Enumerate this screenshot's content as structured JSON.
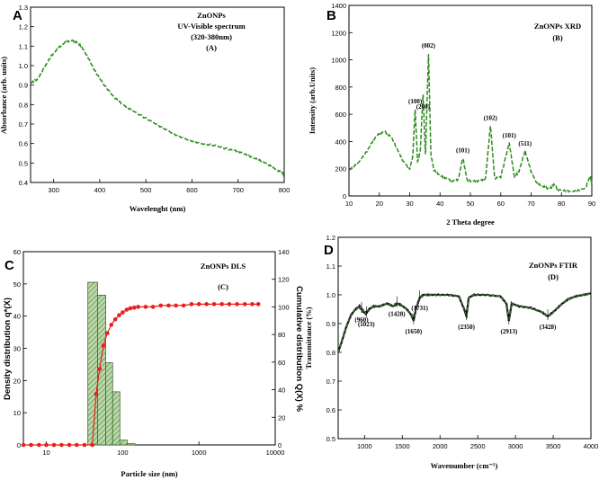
{
  "colors": {
    "series": "#2e8b1e",
    "cumulative": "#e8201c",
    "dls_bars_fill": "#b9d8a8",
    "dls_bars_stroke": "#3f6b35",
    "ftir_line": "#3a7a2e",
    "ftir_shadow": "#111111"
  },
  "chart_data": [
    {
      "id": "A",
      "type": "line",
      "panel_label": "A",
      "title_lines": [
        "ZnONPs",
        "UV-Visible spectrum",
        "(320-380nm)",
        "(A)"
      ],
      "xlabel": "Wavelenght (nm)",
      "ylabel": "Absorbance (arb. units)",
      "xlim": [
        250,
        800
      ],
      "ylim": [
        0.4,
        1.3
      ],
      "xticks": [
        300,
        400,
        500,
        600,
        700,
        800
      ],
      "yticks": [
        0.4,
        0.5,
        0.6,
        0.7,
        0.8,
        0.9,
        1.0,
        1.1,
        1.2,
        1.3
      ],
      "series": [
        {
          "name": "ZnONPs UV-Vis",
          "line_style": "dashed",
          "x": [
            250,
            265,
            280,
            295,
            310,
            325,
            340,
            350,
            360,
            375,
            390,
            410,
            430,
            450,
            470,
            500,
            530,
            560,
            590,
            620,
            650,
            680,
            700,
            720,
            740,
            760,
            780,
            795,
            800
          ],
          "y": [
            0.91,
            0.93,
            0.99,
            1.05,
            1.09,
            1.12,
            1.13,
            1.12,
            1.1,
            1.04,
            0.97,
            0.9,
            0.84,
            0.8,
            0.77,
            0.73,
            0.69,
            0.65,
            0.62,
            0.6,
            0.59,
            0.57,
            0.56,
            0.54,
            0.52,
            0.5,
            0.47,
            0.45,
            0.44
          ]
        }
      ]
    },
    {
      "id": "B",
      "type": "line",
      "panel_label": "B",
      "title_lines": [
        "ZnONPs XRD",
        "(B)"
      ],
      "xlabel": "2 Theta degree",
      "ylabel": "Intensity (arb.Units)",
      "xlim": [
        10,
        90
      ],
      "ylim": [
        0,
        1400
      ],
      "xticks": [
        10,
        20,
        30,
        40,
        50,
        60,
        70,
        80,
        90
      ],
      "yticks": [
        0,
        200,
        400,
        600,
        800,
        1000,
        1200,
        1400
      ],
      "series": [
        {
          "name": "ZnONPs XRD",
          "line_style": "dashed",
          "x": [
            10,
            13,
            16,
            18,
            20,
            22,
            24,
            26,
            28,
            30,
            31,
            31.8,
            32.6,
            33.5,
            34.4,
            35.2,
            36.2,
            37,
            38,
            40,
            42,
            44,
            46,
            47.5,
            49,
            51,
            53,
            55,
            56.6,
            58,
            60,
            62.8,
            64.5,
            66,
            68,
            70,
            72,
            74,
            76,
            77.5,
            79,
            82,
            85,
            88,
            89.5,
            90
          ],
          "y": [
            190,
            240,
            330,
            410,
            460,
            470,
            430,
            340,
            250,
            200,
            290,
            640,
            250,
            330,
            750,
            300,
            1050,
            300,
            190,
            150,
            130,
            110,
            120,
            280,
            110,
            110,
            110,
            130,
            520,
            130,
            140,
            390,
            140,
            180,
            330,
            180,
            90,
            70,
            50,
            85,
            45,
            35,
            35,
            60,
            150,
            90
          ]
        }
      ],
      "annotations": [
        {
          "text": "(100)",
          "x": 31.8,
          "y": 640
        },
        {
          "text": "(200)",
          "x": 34.4,
          "y": 600
        },
        {
          "text": "(002)",
          "x": 36.2,
          "y": 1050
        },
        {
          "text": "(101)",
          "x": 47.5,
          "y": 280
        },
        {
          "text": "(102)",
          "x": 56.6,
          "y": 520
        },
        {
          "text": "(101)",
          "x": 62.8,
          "y": 390
        },
        {
          "text": "(511)",
          "x": 68,
          "y": 330
        }
      ]
    },
    {
      "id": "C",
      "type": "bar",
      "panel_label": "C",
      "title": "ZnONPs DLS",
      "subtitle": "(C)",
      "xlabel": "Particle size (nm)",
      "ylabel": "Density distribution q*(X)",
      "y2label": "Cumulative distribution Q(X) %",
      "xscale": "log",
      "xlim": [
        5,
        10000
      ],
      "ylim": [
        0,
        60
      ],
      "y2lim": [
        0,
        140
      ],
      "xticks": [
        10,
        100,
        1000,
        10000
      ],
      "yticks": [
        0,
        10,
        20,
        30,
        40,
        50,
        60
      ],
      "y2ticks": [
        0,
        20,
        40,
        60,
        80,
        100,
        120,
        140
      ],
      "bars": {
        "edges": [
          35,
          47,
          60,
          74,
          92,
          115,
          145
        ],
        "values": [
          50.5,
          46.5,
          25.5,
          16.5,
          1.5,
          0.4
        ]
      },
      "cumulative": {
        "name": "Cumulative distribution",
        "x": [
          5,
          6.3,
          8,
          10,
          12.6,
          15.8,
          20,
          25,
          31.6,
          40,
          45,
          50,
          56,
          63,
          71,
          80,
          90,
          100,
          113,
          126,
          142,
          160,
          200,
          250,
          316,
          400,
          500,
          630,
          800,
          1000,
          1260,
          1580,
          2000,
          2500,
          3160,
          4000,
          5000,
          6000
        ],
        "y": [
          0,
          0,
          0,
          0,
          0,
          0,
          0,
          0,
          0,
          0,
          37,
          55,
          72,
          81,
          87,
          91,
          94,
          96,
          98,
          99,
          99.5,
          100,
          100,
          100,
          101,
          101,
          101,
          101,
          102,
          102,
          102,
          102,
          102,
          102,
          102,
          102,
          102,
          102
        ]
      }
    },
    {
      "id": "D",
      "type": "line",
      "panel_label": "D",
      "title_lines": [
        "ZnONPs  FTIR",
        "(D)"
      ],
      "xlabel": "Wavenumber (cm⁻¹)",
      "ylabel": "Transmittance (%)",
      "xlim": [
        650,
        4000
      ],
      "ylim": [
        0.5,
        1.2
      ],
      "xticks": [
        1000,
        1500,
        2000,
        2500,
        3000,
        3500,
        4000
      ],
      "yticks": [
        0.5,
        0.6,
        0.7,
        0.8,
        0.9,
        1.0,
        1.1,
        1.2
      ],
      "series": [
        {
          "name": "ZnONPs FTIR",
          "line_style": "dashed",
          "x": [
            650,
            700,
            760,
            820,
            880,
            930,
            960,
            990,
            1023,
            1060,
            1120,
            1200,
            1300,
            1380,
            1428,
            1480,
            1560,
            1620,
            1650,
            1680,
            1731,
            1780,
            1850,
            1950,
            2100,
            2250,
            2320,
            2350,
            2380,
            2450,
            2600,
            2800,
            2880,
            2913,
            2950,
            3050,
            3200,
            3350,
            3428,
            3500,
            3600,
            3700,
            3800,
            3900,
            4000
          ],
          "y": [
            0.8,
            0.84,
            0.89,
            0.93,
            0.95,
            0.96,
            0.95,
            0.94,
            0.935,
            0.95,
            0.96,
            0.96,
            0.97,
            0.96,
            0.97,
            0.965,
            0.95,
            0.93,
            0.91,
            0.95,
            0.99,
            1.0,
            1.0,
            1.0,
            1.0,
            0.995,
            0.95,
            0.925,
            0.99,
            1.0,
            1.0,
            0.995,
            0.97,
            0.91,
            0.97,
            0.96,
            0.955,
            0.94,
            0.925,
            0.94,
            0.965,
            0.985,
            0.995,
            1.0,
            1.005
          ]
        }
      ],
      "annotations": [
        {
          "text": "(960)",
          "x": 960,
          "y": 0.95
        },
        {
          "text": "(1023)",
          "x": 1023,
          "y": 0.935
        },
        {
          "text": "(1428)",
          "x": 1428,
          "y": 0.97
        },
        {
          "text": "(1650)",
          "x": 1650,
          "y": 0.91
        },
        {
          "text": "(1731)",
          "x": 1731,
          "y": 0.99
        },
        {
          "text": "(2350)",
          "x": 2350,
          "y": 0.925
        },
        {
          "text": "(2913)",
          "x": 2913,
          "y": 0.91
        },
        {
          "text": "(3428)",
          "x": 3428,
          "y": 0.925
        }
      ]
    }
  ]
}
